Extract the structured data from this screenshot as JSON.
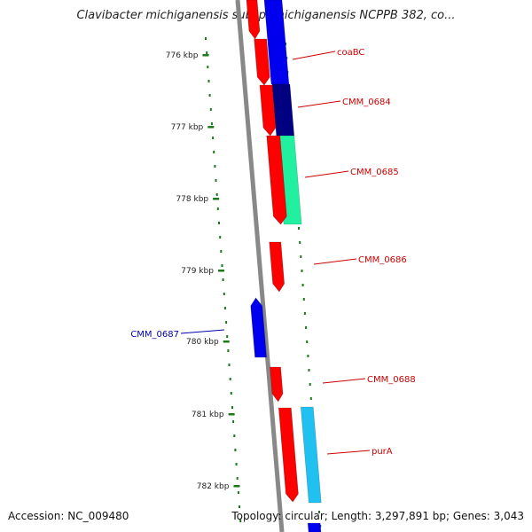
{
  "title": "Clavibacter michiganensis subsp. michiganensis NCPPB 382, co...",
  "footer": {
    "accession": "Accession: NC_009480",
    "summary": "Topology: circular; Length: 3,297,891 bp; Genes: 3,043"
  },
  "colors": {
    "backbone": "#888888",
    "ticks": "#1a7a1a",
    "forward_gene": "#ff0000",
    "reverse_gene": "#0000ee",
    "label_red": "#cc0000",
    "label_blue": "#0000aa"
  },
  "ruler": {
    "ticks": [
      "776 kbp",
      "777 kbp",
      "778 kbp",
      "779 kbp",
      "780 kbp",
      "781 kbp",
      "782 kbp"
    ]
  },
  "genes": [
    {
      "label": "coaBC",
      "strand": "forward",
      "color": "#ff0000"
    },
    {
      "label": "CMM_0684",
      "strand": "forward",
      "color": "#ff0000"
    },
    {
      "label": "CMM_0685",
      "strand": "forward",
      "color": "#ff0000"
    },
    {
      "label": "CMM_0686",
      "strand": "forward",
      "color": "#ff0000"
    },
    {
      "label": "CMM_0687",
      "strand": "reverse",
      "color": "#0000ee"
    },
    {
      "label": "CMM_0688",
      "strand": "forward",
      "color": "#ff0000"
    },
    {
      "label": "purA",
      "strand": "forward",
      "color": "#ff0000"
    }
  ],
  "feature_tracks": [
    {
      "color": "#0000ee"
    },
    {
      "color": "#000080"
    },
    {
      "color": "#20f0a0"
    },
    {
      "color": "#20c0f0"
    },
    {
      "color": "#0000ee"
    }
  ]
}
